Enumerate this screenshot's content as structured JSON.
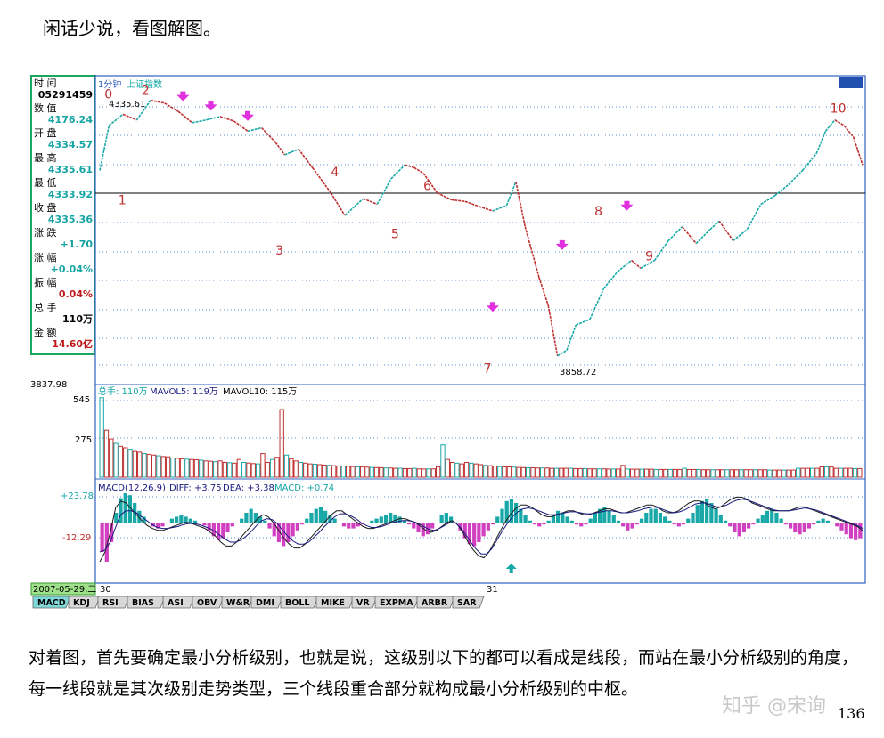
{
  "intro_text": "闲话少说，看图解图。",
  "footer_text": "对着图，首先要确定最小分析级别，也就是说，这级别以下的都可以看成是线段，而站在最小分析级别的角度，每一线段就是其次级别走势类型，三个线段重合部分就构成最小分析级别的中枢。",
  "page_number": "136",
  "watermark": "知乎 @宋询",
  "info_panel": {
    "rows": [
      {
        "label": "时      间",
        "value": "05291459",
        "color": "#000000"
      },
      {
        "label": "数      值",
        "value": "4176.24",
        "color": "#16a5a5"
      },
      {
        "label": "开      盘",
        "value": "4334.57",
        "color": "#16a5a5"
      },
      {
        "label": "最      高",
        "value": "4335.61",
        "color": "#16a5a5"
      },
      {
        "label": "最      低",
        "value": "4333.92",
        "color": "#16a5a5"
      },
      {
        "label": "收      盘",
        "value": "4335.36",
        "color": "#16a5a5"
      },
      {
        "label": "涨      跌",
        "value": "+1.70",
        "color": "#16a5a5"
      },
      {
        "label": "涨      幅",
        "value": "+0.04%",
        "color": "#16a5a5"
      },
      {
        "label": "振      幅",
        "value": "0.04%",
        "color": "#c01818"
      },
      {
        "label": "总      手",
        "value": "110万",
        "color": "#000000"
      },
      {
        "label": "金      额",
        "value": "14.60亿",
        "color": "#c01818"
      }
    ]
  },
  "price_header": {
    "period": "1分钟",
    "name": "上证指数"
  },
  "volume_header": {
    "total": "总手: 110万",
    "ma5": "MAVOL5: 119万",
    "ma10": "MAVOL10: 115万"
  },
  "macd_header": {
    "name": "MACD(12,26,9)",
    "diff": "DIFF: +3.75",
    "dea": "DEA: +3.38",
    "macd": "MACD: +0.74"
  },
  "axis_labels": {
    "price_bottom": "3837.98",
    "vol_top": "545",
    "vol_mid": "275",
    "macd_top": "+23.78",
    "macd_mid": "-12.29",
    "date_box": "2007-05-29,二",
    "tick_30": "30",
    "tick_31": "31"
  },
  "tabs": [
    "MACD",
    "KDJ",
    "RSI",
    "BIAS",
    "ASI",
    "OBV",
    "W&R",
    "DMI",
    "BOLL",
    "MIKE",
    "VR",
    "EXPMA",
    "ARBR",
    "SAR"
  ],
  "active_tab": "MACD",
  "colors": {
    "up": "#c03030",
    "down": "#18a8a8",
    "grid": "#5b8fd6",
    "frame": "#3060c0",
    "marker": "#e030e0",
    "label": "#c03030"
  },
  "chart_data": {
    "type": "line",
    "price_labels": {
      "high": "4335.61",
      "low": "3858.72"
    },
    "segment_labels": [
      "0",
      "1",
      "2",
      "3",
      "4",
      "5",
      "6",
      "7",
      "8",
      "9",
      "10"
    ],
    "price_series": [
      {
        "t": 0,
        "v": 4200
      },
      {
        "t": 2,
        "v": 4280
      },
      {
        "t": 5,
        "v": 4300
      },
      {
        "t": 8,
        "v": 4290
      },
      {
        "t": 11,
        "v": 4325
      },
      {
        "t": 14,
        "v": 4320
      },
      {
        "t": 17,
        "v": 4305
      },
      {
        "t": 20,
        "v": 4285
      },
      {
        "t": 23,
        "v": 4290
      },
      {
        "t": 26,
        "v": 4296
      },
      {
        "t": 29,
        "v": 4288
      },
      {
        "t": 32,
        "v": 4270
      },
      {
        "t": 35,
        "v": 4276
      },
      {
        "t": 38,
        "v": 4250
      },
      {
        "t": 40,
        "v": 4228
      },
      {
        "t": 43,
        "v": 4238
      },
      {
        "t": 46,
        "v": 4205
      },
      {
        "t": 50,
        "v": 4160
      },
      {
        "t": 53,
        "v": 4120
      },
      {
        "t": 55,
        "v": 4135
      },
      {
        "t": 57,
        "v": 4150
      },
      {
        "t": 60,
        "v": 4140
      },
      {
        "t": 63,
        "v": 4185
      },
      {
        "t": 66,
        "v": 4210
      },
      {
        "t": 68,
        "v": 4205
      },
      {
        "t": 70,
        "v": 4195
      },
      {
        "t": 73,
        "v": 4160
      },
      {
        "t": 76,
        "v": 4148
      },
      {
        "t": 79,
        "v": 4145
      },
      {
        "t": 82,
        "v": 4136
      },
      {
        "t": 85,
        "v": 4128
      },
      {
        "t": 88,
        "v": 4138
      },
      {
        "t": 90,
        "v": 4180
      },
      {
        "t": 92,
        "v": 4100
      },
      {
        "t": 95,
        "v": 4010
      },
      {
        "t": 97,
        "v": 3960
      },
      {
        "t": 99,
        "v": 3870
      },
      {
        "t": 101,
        "v": 3880
      },
      {
        "t": 103,
        "v": 3925
      },
      {
        "t": 106,
        "v": 3935
      },
      {
        "t": 109,
        "v": 3990
      },
      {
        "t": 112,
        "v": 4020
      },
      {
        "t": 115,
        "v": 4040
      },
      {
        "t": 117,
        "v": 4026
      },
      {
        "t": 120,
        "v": 4040
      },
      {
        "t": 123,
        "v": 4075
      },
      {
        "t": 126,
        "v": 4100
      },
      {
        "t": 129,
        "v": 4070
      },
      {
        "t": 132,
        "v": 4095
      },
      {
        "t": 134,
        "v": 4110
      },
      {
        "t": 137,
        "v": 4075
      },
      {
        "t": 140,
        "v": 4095
      },
      {
        "t": 143,
        "v": 4140
      },
      {
        "t": 146,
        "v": 4155
      },
      {
        "t": 149,
        "v": 4175
      },
      {
        "t": 152,
        "v": 4200
      },
      {
        "t": 155,
        "v": 4230
      },
      {
        "t": 157,
        "v": 4270
      },
      {
        "t": 159,
        "v": 4290
      },
      {
        "t": 161,
        "v": 4280
      },
      {
        "t": 163,
        "v": 4260
      },
      {
        "t": 165,
        "v": 4210
      }
    ],
    "arrows_down": [
      {
        "t": 18,
        "v": 4325
      },
      {
        "t": 24,
        "v": 4308
      },
      {
        "t": 32,
        "v": 4290
      },
      {
        "t": 85,
        "v": 3950
      },
      {
        "t": 100,
        "v": 4060
      },
      {
        "t": 114,
        "v": 4130
      }
    ],
    "arrow_up_macd": 89,
    "label_points": [
      {
        "label": "0",
        "t": 1,
        "v": 4328
      },
      {
        "label": "1",
        "t": 4,
        "v": 4140
      },
      {
        "label": "2",
        "t": 9,
        "v": 4335
      },
      {
        "label": "3",
        "t": 38,
        "v": 4050
      },
      {
        "label": "4",
        "t": 50,
        "v": 4190
      },
      {
        "label": "5",
        "t": 63,
        "v": 4080
      },
      {
        "label": "6",
        "t": 70,
        "v": 4165
      },
      {
        "label": "7",
        "t": 83,
        "v": 3840
      },
      {
        "label": "8",
        "t": 107,
        "v": 4120
      },
      {
        "label": "9",
        "t": 118,
        "v": 4040
      },
      {
        "label": "10",
        "t": 158,
        "v": 4303
      }
    ],
    "volume": [
      540,
      320,
      260,
      230,
      210,
      200,
      190,
      175,
      170,
      160,
      155,
      150,
      145,
      140,
      138,
      130,
      128,
      125,
      122,
      120,
      118,
      115,
      110,
      108,
      105,
      110,
      100,
      98,
      95,
      120,
      100,
      96,
      92,
      90,
      160,
      100,
      120,
      135,
      460,
      150,
      125,
      110,
      100,
      95,
      90,
      88,
      85,
      82,
      80,
      78,
      76,
      75,
      74,
      72,
      70,
      70,
      68,
      66,
      65,
      64,
      62,
      62,
      60,
      60,
      58,
      58,
      60,
      56,
      55,
      56,
      56,
      70,
      220,
      120,
      100,
      95,
      90,
      100,
      95,
      90,
      85,
      80,
      78,
      75,
      72,
      70,
      70,
      68,
      66,
      65,
      64,
      64,
      62,
      62,
      62,
      60,
      60,
      60,
      60,
      60,
      58,
      58,
      58,
      56,
      56,
      56,
      56,
      55,
      55,
      55,
      80,
      55,
      54,
      54,
      54,
      54,
      54,
      52,
      52,
      52,
      52,
      52,
      52,
      60,
      52,
      52,
      52,
      50,
      50,
      50,
      50,
      50,
      50,
      50,
      50,
      50,
      50,
      50,
      50,
      50,
      50,
      48,
      48,
      48,
      48,
      48,
      48,
      60,
      60,
      60,
      60,
      60,
      70,
      70,
      70,
      60,
      60,
      60,
      60,
      58,
      58
    ],
    "macd_hist": [
      -30,
      -40,
      -20,
      10,
      25,
      30,
      28,
      20,
      12,
      6,
      0,
      -4,
      -6,
      -4,
      0,
      4,
      6,
      8,
      6,
      4,
      2,
      0,
      -3,
      -8,
      -14,
      -18,
      -16,
      -10,
      -4,
      0,
      4,
      10,
      14,
      10,
      6,
      2,
      -6,
      -14,
      -20,
      -24,
      -20,
      -14,
      -8,
      -2,
      4,
      10,
      14,
      16,
      12,
      8,
      4,
      0,
      -4,
      -6,
      -6,
      -4,
      -2,
      0,
      2,
      4,
      6,
      8,
      10,
      8,
      6,
      2,
      -2,
      -6,
      -10,
      -14,
      -12,
      -6,
      0,
      8,
      10,
      6,
      0,
      -8,
      -16,
      -22,
      -24,
      -20,
      -14,
      -8,
      -2,
      6,
      14,
      22,
      24,
      20,
      14,
      8,
      2,
      -2,
      -4,
      -2,
      2,
      8,
      12,
      10,
      6,
      2,
      -2,
      -4,
      -2,
      4,
      10,
      14,
      16,
      12,
      8,
      2,
      -4,
      -8,
      -6,
      -2,
      4,
      10,
      14,
      14,
      10,
      6,
      2,
      -2,
      -4,
      -2,
      4,
      10,
      18,
      22,
      24,
      20,
      14,
      8,
      2,
      -4,
      -10,
      -14,
      -10,
      -6,
      -2,
      4,
      8,
      12,
      14,
      10,
      4,
      -2,
      -6,
      -10,
      -12,
      -10,
      -6,
      -2,
      2,
      4,
      2,
      0,
      -4,
      -8,
      -12,
      -16,
      -18,
      -16
    ],
    "diff_series": [
      -40,
      -30,
      -10,
      15,
      22,
      20,
      14,
      8,
      2,
      -3,
      -6,
      -8,
      -8,
      -6,
      -4,
      -2,
      0,
      0,
      -2,
      -4,
      -6,
      -10,
      -14,
      -20,
      -24,
      -24,
      -20,
      -14,
      -8,
      -2,
      4,
      8,
      6,
      0,
      -8,
      -16,
      -22,
      -26,
      -26,
      -22,
      -16,
      -10,
      -4,
      2,
      8,
      12,
      12,
      8,
      4,
      0,
      -4,
      -6,
      -6,
      -4,
      -2,
      0,
      2,
      4,
      4,
      2,
      0,
      -4,
      -8,
      -10,
      -8,
      -4,
      0,
      2,
      -2,
      -10,
      -20,
      -28,
      -34,
      -36,
      -30,
      -20,
      -10,
      0,
      8,
      14,
      18,
      18,
      16,
      12,
      8,
      6,
      6,
      8,
      10,
      12,
      12,
      10,
      8,
      8,
      10,
      12,
      14,
      14,
      12,
      10,
      10,
      12,
      14,
      16,
      18,
      18,
      16,
      12,
      10,
      10,
      12,
      16,
      20,
      22,
      22,
      20,
      16,
      14,
      16,
      20,
      24,
      26,
      26,
      24,
      20,
      18,
      16,
      14,
      12,
      12,
      12,
      12,
      14,
      16,
      16,
      14,
      12,
      10,
      8,
      6,
      4,
      2,
      0,
      -2,
      -4,
      -8
    ],
    "dea_series": [
      -30,
      -28,
      -20,
      -5,
      8,
      12,
      12,
      10,
      6,
      2,
      -2,
      -5,
      -6,
      -6,
      -5,
      -4,
      -2,
      -1,
      -1,
      -2,
      -4,
      -6,
      -9,
      -13,
      -17,
      -20,
      -20,
      -18,
      -14,
      -9,
      -3,
      2,
      4,
      3,
      -1,
      -8,
      -14,
      -19,
      -22,
      -22,
      -20,
      -15,
      -10,
      -4,
      1,
      6,
      9,
      9,
      7,
      4,
      0,
      -3,
      -5,
      -5,
      -4,
      -2,
      0,
      1,
      2,
      2,
      1,
      -1,
      -4,
      -7,
      -8,
      -6,
      -3,
      0,
      0,
      -5,
      -12,
      -20,
      -27,
      -32,
      -32,
      -27,
      -18,
      -9,
      -1,
      6,
      11,
      14,
      15,
      14,
      12,
      10,
      8,
      8,
      9,
      10,
      11,
      11,
      10,
      9,
      9,
      10,
      11,
      12,
      12,
      11,
      10,
      10,
      11,
      12,
      14,
      15,
      16,
      15,
      13,
      11,
      10,
      11,
      13,
      16,
      19,
      20,
      20,
      18,
      16,
      16,
      18,
      21,
      23,
      24,
      23,
      21,
      19,
      17,
      15,
      13,
      12,
      12,
      12,
      13,
      14,
      15,
      14,
      13,
      11,
      9,
      7,
      5,
      3,
      1,
      -1,
      -3,
      -6
    ]
  }
}
